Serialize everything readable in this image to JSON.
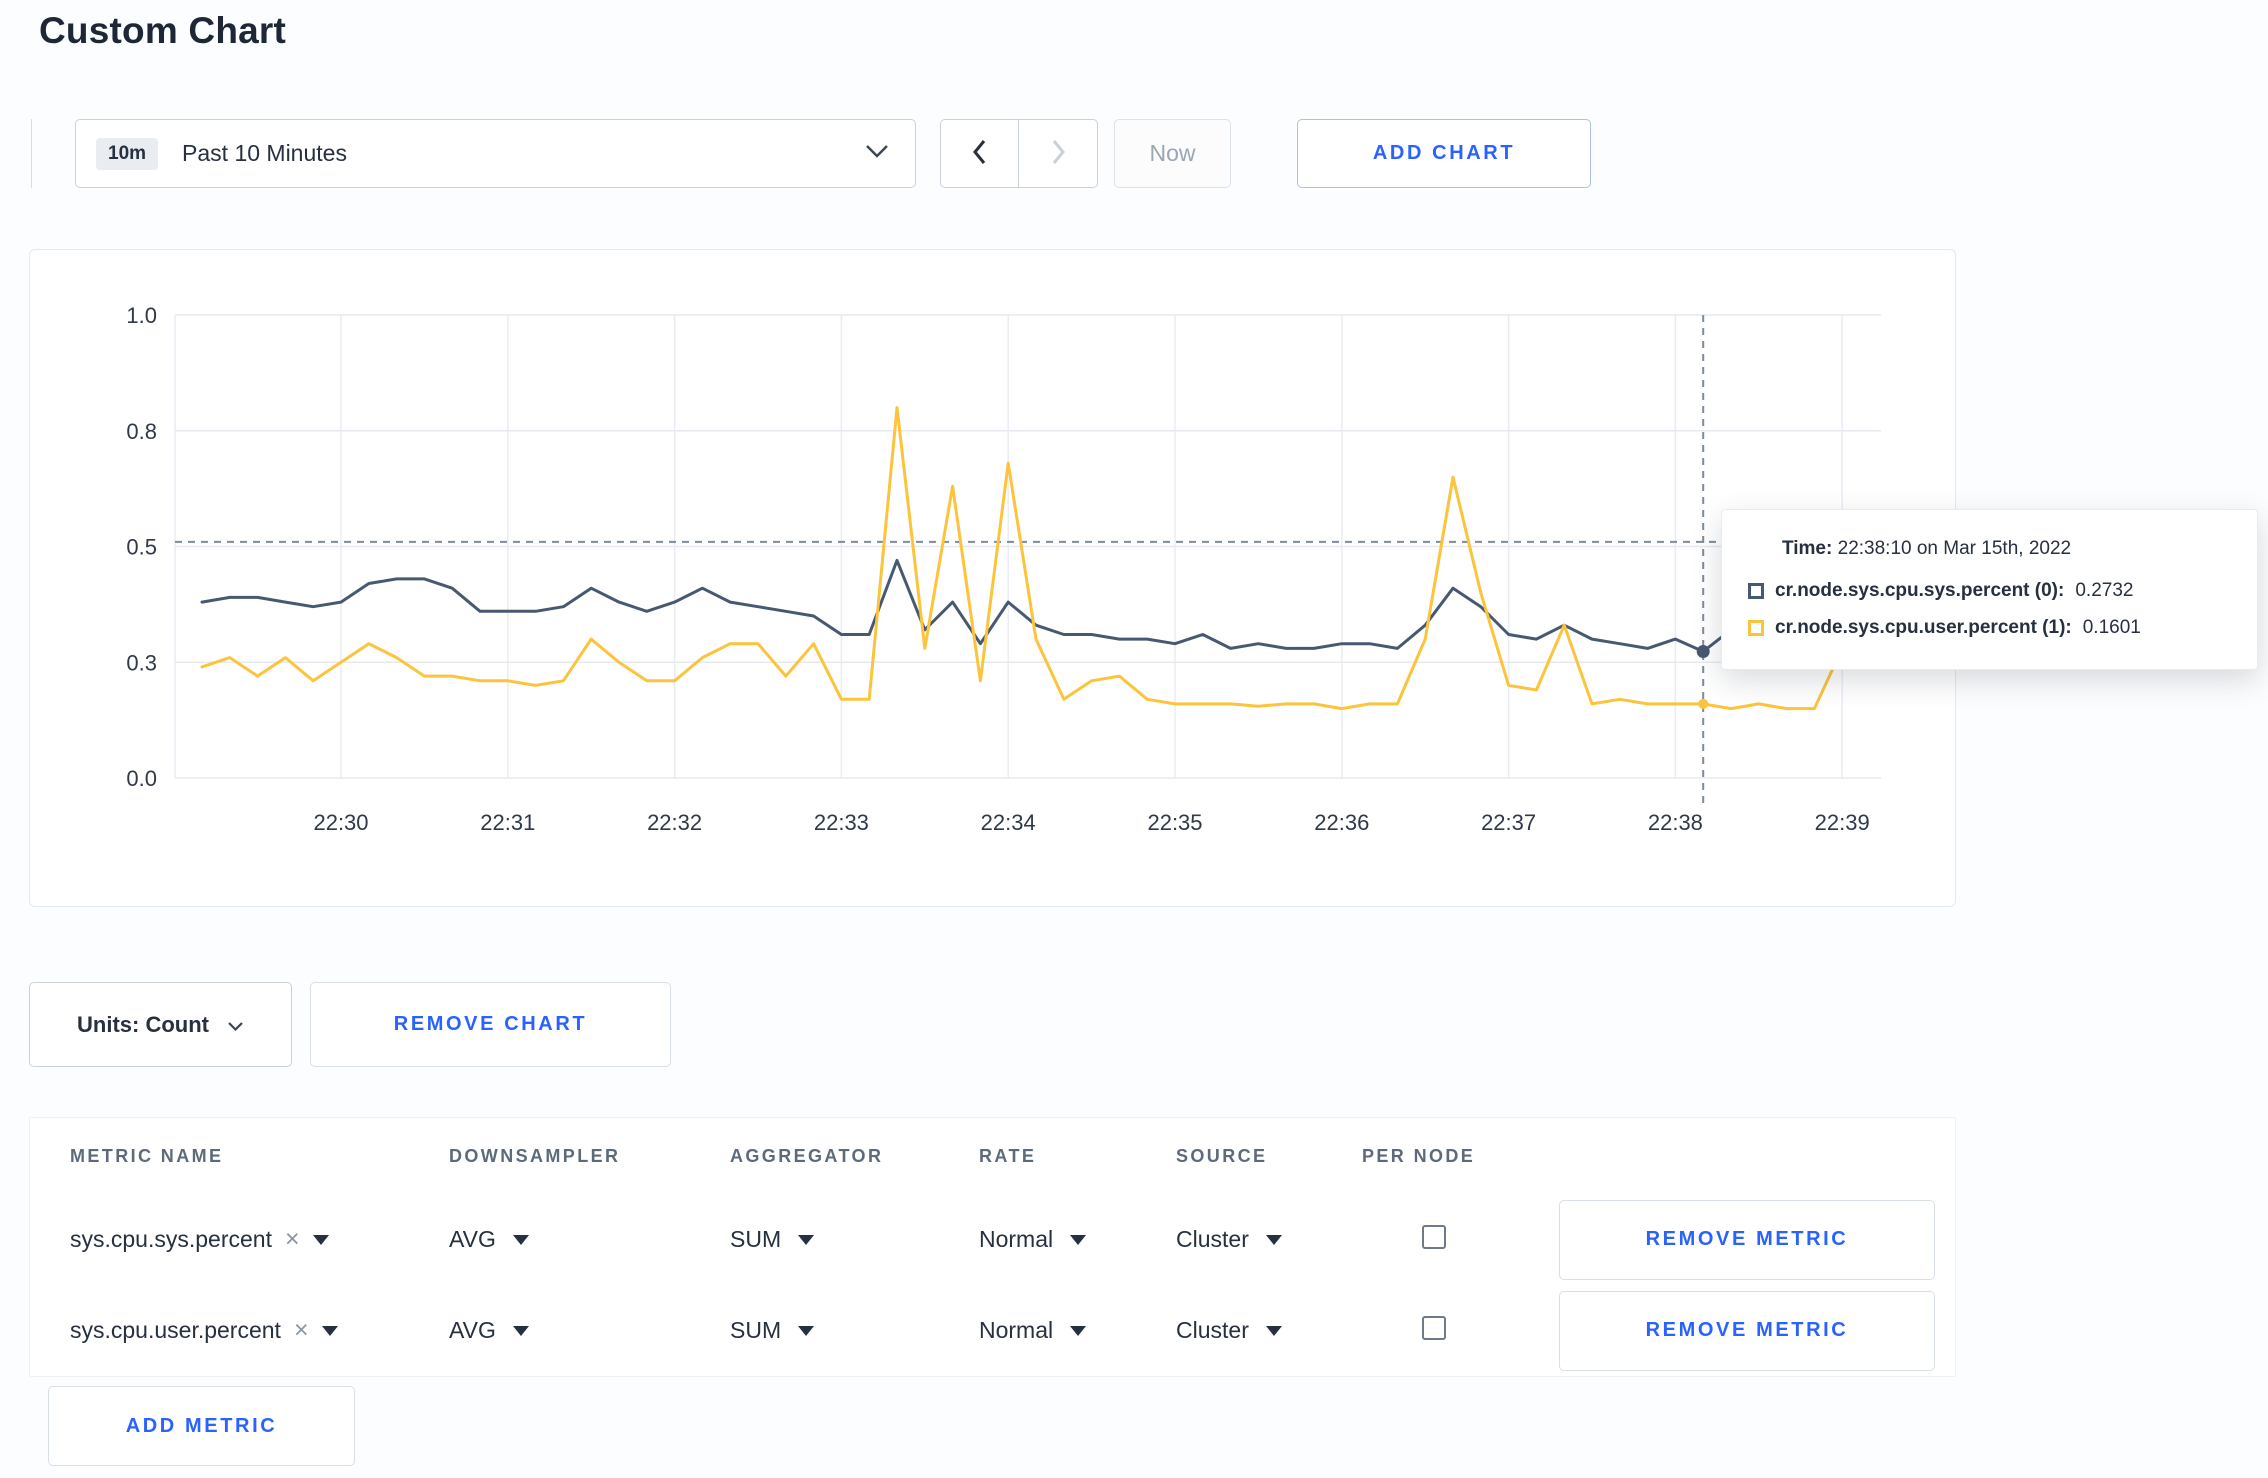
{
  "page": {
    "title": "Custom Chart"
  },
  "icons": {
    "clear": "×"
  },
  "colors": {
    "accent_blue": "#2962ff",
    "series_sys": "#475970",
    "series_user": "#fcc43c"
  },
  "toolbar": {
    "time_range": {
      "badge": "10m",
      "label": "Past 10 Minutes"
    },
    "now_label": "Now",
    "add_chart_label": "ADD CHART"
  },
  "tooltip": {
    "time_label": "Time:",
    "time_value": "22:38:10 on Mar 15th, 2022",
    "series": [
      {
        "label": "cr.node.sys.cpu.sys.percent (0):",
        "value": "0.2732",
        "color": "#475970"
      },
      {
        "label": "cr.node.sys.cpu.user.percent (1):",
        "value": "0.1601",
        "color": "#fcc43c"
      }
    ]
  },
  "controls": {
    "units_label": "Units: Count",
    "remove_chart_label": "REMOVE CHART",
    "remove_metric_label": "REMOVE METRIC",
    "add_metric_label": "ADD METRIC"
  },
  "table": {
    "headers": [
      "METRIC NAME",
      "DOWNSAMPLER",
      "AGGREGATOR",
      "RATE",
      "SOURCE",
      "PER NODE"
    ],
    "rows": [
      {
        "metric": "sys.cpu.sys.percent",
        "downsampler": "AVG",
        "aggregator": "SUM",
        "rate": "Normal",
        "source": "Cluster",
        "per_node": false
      },
      {
        "metric": "sys.cpu.user.percent",
        "downsampler": "AVG",
        "aggregator": "SUM",
        "rate": "Normal",
        "source": "Cluster",
        "per_node": false
      }
    ]
  },
  "chart_data": {
    "type": "line",
    "title": "",
    "xlabel": "",
    "ylabel": "",
    "x_start": "22:29:10",
    "x_interval_seconds": 10,
    "x_tick_labels": [
      "22:30",
      "22:31",
      "22:32",
      "22:33",
      "22:34",
      "22:35",
      "22:36",
      "22:37",
      "22:38",
      "22:39"
    ],
    "ylim": [
      0,
      1
    ],
    "y_ticks": [
      0,
      0.25,
      0.5,
      0.75,
      1
    ],
    "y_tick_labels": [
      "0.0",
      "0.3",
      "0.5",
      "0.8",
      "1.0"
    ],
    "grid": true,
    "legend_position": "tooltip-only",
    "series": [
      {
        "name": "cr.node.sys.cpu.sys.percent",
        "color": "#475970",
        "values": [
          0.38,
          0.39,
          0.39,
          0.38,
          0.37,
          0.38,
          0.42,
          0.43,
          0.43,
          0.41,
          0.36,
          0.36,
          0.36,
          0.37,
          0.41,
          0.38,
          0.36,
          0.38,
          0.41,
          0.38,
          0.37,
          0.36,
          0.35,
          0.31,
          0.31,
          0.47,
          0.32,
          0.38,
          0.29,
          0.38,
          0.33,
          0.31,
          0.31,
          0.3,
          0.3,
          0.29,
          0.31,
          0.28,
          0.29,
          0.28,
          0.28,
          0.29,
          0.29,
          0.28,
          0.33,
          0.41,
          0.37,
          0.31,
          0.3,
          0.33,
          0.3,
          0.29,
          0.28,
          0.3,
          0.2732,
          0.32,
          0.3,
          0.29,
          0.3,
          0.3,
          0.31
        ]
      },
      {
        "name": "cr.node.sys.cpu.user.percent",
        "color": "#fcc43c",
        "values": [
          0.24,
          0.26,
          0.22,
          0.26,
          0.21,
          0.25,
          0.29,
          0.26,
          0.22,
          0.22,
          0.21,
          0.21,
          0.2,
          0.21,
          0.3,
          0.25,
          0.21,
          0.21,
          0.26,
          0.29,
          0.29,
          0.22,
          0.29,
          0.17,
          0.17,
          0.8,
          0.28,
          0.63,
          0.21,
          0.68,
          0.3,
          0.17,
          0.21,
          0.22,
          0.17,
          0.16,
          0.16,
          0.16,
          0.155,
          0.16,
          0.16,
          0.15,
          0.16,
          0.16,
          0.3,
          0.65,
          0.4,
          0.2,
          0.19,
          0.33,
          0.16,
          0.17,
          0.16,
          0.16,
          0.1601,
          0.15,
          0.16,
          0.15,
          0.15,
          0.28,
          0.24
        ]
      }
    ],
    "crosshair": {
      "index": 54,
      "time": "22:38:10",
      "hline_value": 0.51
    }
  }
}
